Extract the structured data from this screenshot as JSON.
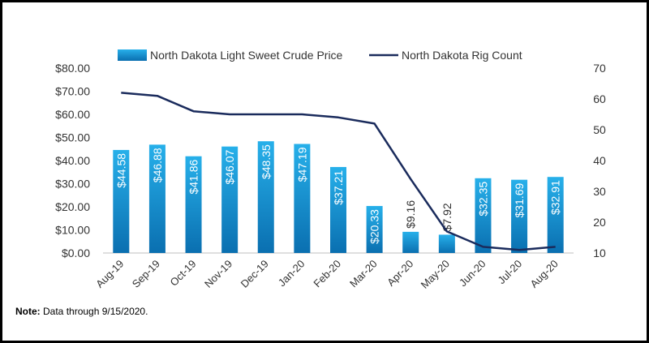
{
  "chart_data": {
    "type": "bar",
    "categories": [
      "Aug-19",
      "Sep-19",
      "Oct-19",
      "Nov-19",
      "Dec-19",
      "Jan-20",
      "Feb-20",
      "Mar-20",
      "Apr-20",
      "May-20",
      "Jun-20",
      "Jul-20",
      "Aug-20"
    ],
    "series": [
      {
        "name": "North Dakota Light Sweet Crude Price",
        "type": "bar",
        "axis": "left",
        "values": [
          44.58,
          46.88,
          41.86,
          46.07,
          48.35,
          47.19,
          37.21,
          20.33,
          9.16,
          7.92,
          32.35,
          31.69,
          32.91
        ],
        "labels": [
          "$44.58",
          "$46.88",
          "$41.86",
          "$46.07",
          "$48.35",
          "$47.19",
          "$37.21",
          "$20.33",
          "$9.16",
          "$7.92",
          "$32.35",
          "$31.69",
          "$32.91"
        ]
      },
      {
        "name": "North Dakota Rig Count",
        "type": "line",
        "axis": "right",
        "values": [
          62,
          61,
          56,
          55,
          55,
          55,
          54,
          52,
          34,
          17,
          12,
          11,
          12
        ]
      }
    ],
    "left_axis": {
      "ylim": [
        0,
        80
      ],
      "ticks": [
        "$0.00",
        "$10.00",
        "$20.00",
        "$30.00",
        "$40.00",
        "$50.00",
        "$60.00",
        "$70.00",
        "$80.00"
      ]
    },
    "right_axis": {
      "ylim": [
        10,
        70
      ],
      "ticks": [
        "10",
        "20",
        "30",
        "40",
        "50",
        "60",
        "70"
      ]
    },
    "grid": false,
    "legend_position": "top",
    "colors": {
      "bar": "#1e9ad6",
      "bar_dark": "#0a6fb0",
      "line": "#1a2b5c"
    }
  },
  "note": {
    "label": "Note:",
    "text": " Data through 9/15/2020."
  }
}
